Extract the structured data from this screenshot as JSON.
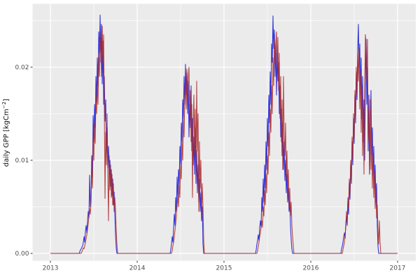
{
  "chart_data": {
    "type": "line",
    "title": "",
    "xlabel": "",
    "ylabel": {
      "prefix": "daily GPP [kgCm",
      "sup": "−2",
      "suffix": "]"
    },
    "x_domain": [
      2012.794,
      2017.21
    ],
    "y_domain": [
      -0.00079,
      0.0268
    ],
    "grid": true,
    "legend_position": "none",
    "x_axis": {
      "ticks": [
        {
          "value": 2013,
          "label": "2013"
        },
        {
          "value": 2014,
          "label": "2014"
        },
        {
          "value": 2015,
          "label": "2015"
        },
        {
          "value": 2016,
          "label": "2016"
        },
        {
          "value": 2017,
          "label": "2017"
        }
      ],
      "minor": [
        2013.5,
        2014.5,
        2015.5,
        2016.5
      ]
    },
    "y_axis": {
      "ticks": [
        {
          "value": 0,
          "label": "0.00"
        },
        {
          "value": 0.01,
          "label": "0.01"
        },
        {
          "value": 0.02,
          "label": "0.02"
        }
      ],
      "minor": [
        0.005,
        0.015,
        0.025
      ]
    },
    "colors": {
      "panel": "#ebebeb",
      "grid_major": "#ffffff",
      "grid_minor": "#ffffff",
      "tick_mark": "#333333",
      "tick_label": "#4d4d4d"
    },
    "series": [
      {
        "id": "series-blue",
        "name": "blue",
        "color": "#1515d8",
        "start": 2013.0,
        "end": 2017.0,
        "seasons": [
          {
            "x0": 2013.331,
            "dx": 0.00806,
            "values": [
              0,
              0.0002,
              0.0004,
              0.0005,
              0.0007,
              0.0008,
              0.0012,
              0.0018,
              0.0012,
              0.0024,
              0.003,
              0.0022,
              0.0035,
              0.0045,
              0.0038,
              0.0084,
              0.005,
              0.0062,
              0.0105,
              0.0082,
              0.0148,
              0.012,
              0.016,
              0.0135,
              0.019,
              0.0162,
              0.021,
              0.018,
              0.0238,
              0.0215,
              0.0256,
              0.0205,
              0.0246,
              0.0182,
              0.0228,
              0.016,
              0.019,
              0.0142,
              0.0165,
              0.0108,
              0.0135,
              0.0092,
              0.0115,
              0.0082,
              0.01,
              0.0072,
              0.009,
              0.0062,
              0.008,
              0.0052,
              0.0066,
              0.0042,
              0.002,
              0.0006,
              0
            ]
          },
          {
            "x0": 2014.379,
            "dx": 0.00806,
            "values": [
              0,
              0.0004,
              0.001,
              0.0018,
              0.0012,
              0.0028,
              0.0042,
              0.003,
              0.006,
              0.0045,
              0.0082,
              0.0058,
              0.009,
              0.0075,
              0.0115,
              0.0095,
              0.014,
              0.012,
              0.0165,
              0.0145,
              0.019,
              0.016,
              0.0203,
              0.017,
              0.0195,
              0.015,
              0.0185,
              0.0125,
              0.016,
              0.0135,
              0.018,
              0.011,
              0.0145,
              0.0095,
              0.0125,
              0.0085,
              0.0135,
              0.0075,
              0.011,
              0.0065,
              0.0095,
              0.0055,
              0.008,
              0.0045,
              0.0065,
              0.0035,
              0.005,
              0.001,
              0
            ]
          },
          {
            "x0": 2015.363,
            "dx": 0.00806,
            "values": [
              0,
              0.0004,
              0.001,
              0.0014,
              0.002,
              0.0014,
              0.0028,
              0.0035,
              0.0028,
              0.006,
              0.0045,
              0.008,
              0.0055,
              0.0095,
              0.007,
              0.012,
              0.009,
              0.0145,
              0.0115,
              0.017,
              0.014,
              0.0195,
              0.016,
              0.0225,
              0.0205,
              0.0255,
              0.022,
              0.024,
              0.019,
              0.0225,
              0.017,
              0.0215,
              0.0185,
              0.0205,
              0.015,
              0.018,
              0.0125,
              0.0155,
              0.0105,
              0.014,
              0.009,
              0.012,
              0.0078,
              0.01,
              0.0065,
              0.0085,
              0.0055,
              0.007,
              0.0045,
              0.0055,
              0.003,
              0.0015,
              0.0005,
              0
            ]
          },
          {
            "x0": 2016.347,
            "dx": 0.00806,
            "values": [
              0,
              0.0005,
              0.0008,
              0.0012,
              0.0018,
              0.0022,
              0.0016,
              0.0032,
              0.004,
              0.003,
              0.0055,
              0.0042,
              0.0075,
              0.0058,
              0.0095,
              0.0075,
              0.012,
              0.0095,
              0.0145,
              0.0118,
              0.017,
              0.014,
              0.0195,
              0.0165,
              0.022,
              0.0246,
              0.02,
              0.0225,
              0.017,
              0.021,
              0.0145,
              0.019,
              0.012,
              0.0165,
              0.01,
              0.0185,
              0.023,
              0.016,
              0.02,
              0.011,
              0.017,
              0.0085,
              0.014,
              0.0175,
              0.0105,
              0.0135,
              0.0085,
              0.0115,
              0.007,
              0.0095,
              0.0055,
              0.0075,
              0.003,
              0.0008,
              0
            ]
          }
        ]
      },
      {
        "id": "series-red",
        "name": "red",
        "color": "#aa2b2b",
        "start": 2013.0,
        "end": 2017.0,
        "seasons": [
          {
            "x0": 2013.355,
            "dx": 0.00806,
            "values": [
              0,
              0.0002,
              0.0004,
              0.0006,
              0.0005,
              0.0008,
              0.0012,
              0.0016,
              0.002,
              0.0026,
              0.0032,
              0.004,
              0.0048,
              0.0042,
              0.0055,
              0.009,
              0.007,
              0.0125,
              0.01,
              0.014,
              0.0118,
              0.0168,
              0.015,
              0.0185,
              0.016,
              0.0215,
              0.019,
              0.0235,
              0.0215,
              0.019,
              0.0244,
              0.0205,
              0.0235,
              0.016,
              0.0059,
              0.013,
              0.0095,
              0.015,
              0.0085,
              0.0035,
              0.0105,
              0.0068,
              0.0095,
              0.006,
              0.0085,
              0.0052,
              0.0075,
              0.0045,
              0.006,
              0.0048,
              0.0025,
              0.001,
              0
            ]
          },
          {
            "x0": 2014.395,
            "dx": 0.00806,
            "values": [
              0,
              0.0003,
              0.0008,
              0.0012,
              0.0018,
              0.0025,
              0.0032,
              0.004,
              0.0052,
              0.006,
              0.005,
              0.0075,
              0.006,
              0.0095,
              0.008,
              0.012,
              0.01,
              0.0145,
              0.0125,
              0.017,
              0.0185,
              0.0155,
              0.0198,
              0.0165,
              0.019,
              0.02,
              0.0145,
              0.0175,
              0.012,
              0.016,
              0.006,
              0.014,
              0.017,
              0.0105,
              0.0155,
              0.008,
              0.0185,
              0.011,
              0.015,
              0.0045,
              0.012,
              0.007,
              0.01,
              0.004,
              0.0075,
              0.005,
              0.0015,
              0
            ]
          },
          {
            "x0": 2015.379,
            "dx": 0.00806,
            "values": [
              0,
              0.0003,
              0.0008,
              0.0012,
              0.0018,
              0.0022,
              0.0028,
              0.0035,
              0.0028,
              0.005,
              0.004,
              0.0068,
              0.0052,
              0.0085,
              0.0065,
              0.0105,
              0.0085,
              0.013,
              0.0105,
              0.0155,
              0.013,
              0.018,
              0.015,
              0.021,
              0.018,
              0.023,
              0.0205,
              0.0225,
              0.0238,
              0.02,
              0.0232,
              0.0175,
              0.0215,
              0.0145,
              0.019,
              0.012,
              0.0165,
              0.009,
              0.019,
              0.013,
              0.0105,
              0.014,
              0.008,
              0.011,
              0.0065,
              0.009,
              0.005,
              0.007,
              0.004,
              0.0055,
              0.003,
              0.0018,
              0.0008,
              0
            ]
          },
          {
            "x0": 2016.363,
            "dx": 0.00806,
            "values": [
              0,
              0.0004,
              0.0008,
              0.0012,
              0.002,
              0.0028,
              0.0045,
              0.0035,
              0.006,
              0.0048,
              0.008,
              0.0062,
              0.01,
              0.008,
              0.0125,
              0.01,
              0.015,
              0.0122,
              0.0175,
              0.0148,
              0.02,
              0.017,
              0.0215,
              0.0185,
              0.022,
              0.0155,
              0.0195,
              0.013,
              0.018,
              0.0105,
              0.0155,
              0.0085,
              0.017,
              0.0235,
              0.0225,
              0.0185,
              0.023,
              0.012,
              0.0155,
              0.0085,
              0.0165,
              0.009,
              0.0125,
              0.007,
              0.0105,
              0.006,
              0.0088,
              0.0048,
              0.0068,
              0.0038,
              0.0052,
              0.0025,
              0.001,
              0.0035,
              0.0012,
              0
            ]
          }
        ]
      }
    ]
  }
}
